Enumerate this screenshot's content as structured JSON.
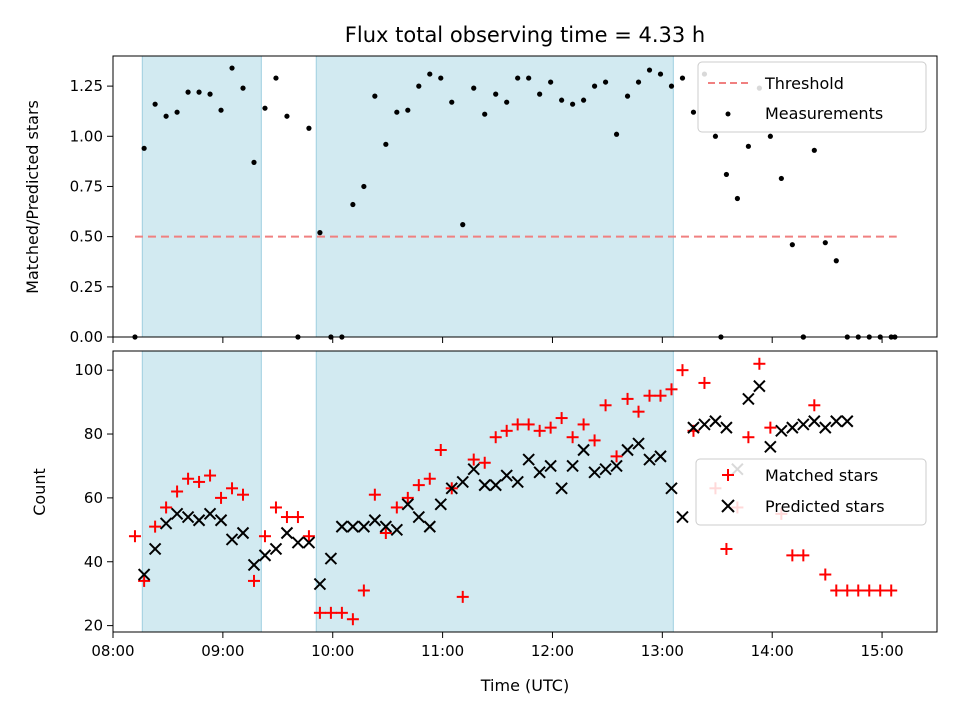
{
  "chart_data": [
    {
      "type": "scatter",
      "title": "Flux total observing time = 4.33 h",
      "xlabel": "",
      "ylabel": "Matched/Predicted stars",
      "xlim": [
        "08:00",
        "15:30"
      ],
      "ylim": [
        0,
        1.4
      ],
      "yticks": [
        "0.00",
        "0.25",
        "0.50",
        "0.75",
        "1.00",
        "1.25"
      ],
      "ytick_values": [
        0,
        0.25,
        0.5,
        0.75,
        1.0,
        1.25
      ],
      "xtick_values": [
        "08:00",
        "09:00",
        "10:00",
        "11:00",
        "12:00",
        "13:00",
        "14:00",
        "15:00"
      ],
      "shaded_intervals": [
        [
          "08:16",
          "09:21"
        ],
        [
          "09:51",
          "13:06"
        ]
      ],
      "shade_color": "#add8e6",
      "legend_position": "upper right",
      "series": [
        {
          "name": "Threshold",
          "kind": "dashed-line",
          "color": "#f08080",
          "x": [
            "08:12",
            "15:08"
          ],
          "y": [
            0.5,
            0.5
          ]
        },
        {
          "name": "Measurements",
          "kind": "dot",
          "color": "#000000",
          "x": [
            "08:12",
            "08:17",
            "08:23",
            "08:29",
            "08:35",
            "08:41",
            "08:47",
            "08:53",
            "08:59",
            "09:05",
            "09:11",
            "09:17",
            "09:23",
            "09:29",
            "09:35",
            "09:41",
            "09:47",
            "09:53",
            "09:59",
            "10:05",
            "10:11",
            "10:17",
            "10:23",
            "10:29",
            "10:35",
            "10:41",
            "10:47",
            "10:53",
            "10:59",
            "11:05",
            "11:11",
            "11:17",
            "11:23",
            "11:29",
            "11:35",
            "11:41",
            "11:47",
            "11:53",
            "11:59",
            "12:05",
            "12:11",
            "12:17",
            "12:23",
            "12:29",
            "12:35",
            "12:41",
            "12:47",
            "12:53",
            "12:59",
            "13:05",
            "13:11",
            "13:17",
            "13:23",
            "13:29",
            "13:35",
            "13:41",
            "13:47",
            "13:53",
            "13:59",
            "14:05",
            "14:11",
            "14:17",
            "14:23",
            "14:29",
            "14:35",
            "14:41",
            "14:47",
            "14:53",
            "14:59",
            "15:05",
            "15:07",
            "13:32",
            "14:17"
          ],
          "y": [
            0.0,
            0.94,
            1.16,
            1.1,
            1.12,
            1.22,
            1.22,
            1.21,
            1.13,
            1.34,
            1.24,
            0.87,
            1.14,
            1.29,
            1.1,
            0.0,
            1.04,
            0.52,
            0.0,
            0.0,
            0.66,
            0.75,
            1.2,
            0.96,
            1.12,
            1.13,
            1.25,
            1.31,
            1.29,
            1.17,
            0.56,
            1.24,
            1.11,
            1.21,
            1.17,
            1.29,
            1.29,
            1.21,
            1.27,
            1.18,
            1.16,
            1.18,
            1.25,
            1.27,
            1.01,
            1.2,
            1.27,
            1.33,
            1.31,
            1.25,
            1.29,
            1.12,
            1.31,
            1.0,
            0.81,
            0.69,
            0.95,
            1.24,
            1.0,
            0.79,
            0.46,
            0.0,
            0.93,
            0.47,
            0.38,
            0.0,
            0.0,
            0.0,
            0.0,
            0.0,
            0.0,
            0.0,
            0.0
          ]
        }
      ]
    },
    {
      "type": "scatter",
      "title": "",
      "xlabel": "Time (UTC)",
      "ylabel": "Count",
      "xlim": [
        "08:00",
        "15:30"
      ],
      "ylim": [
        18,
        106
      ],
      "yticks": [
        "20",
        "40",
        "60",
        "80",
        "100"
      ],
      "ytick_values": [
        20,
        40,
        60,
        80,
        100
      ],
      "xticks": [
        "08:00",
        "09:00",
        "10:00",
        "11:00",
        "12:00",
        "13:00",
        "14:00",
        "15:00"
      ],
      "xtick_values": [
        "08:00",
        "09:00",
        "10:00",
        "11:00",
        "12:00",
        "13:00",
        "14:00",
        "15:00"
      ],
      "shaded_intervals": [
        [
          "08:16",
          "09:21"
        ],
        [
          "09:51",
          "13:06"
        ]
      ],
      "shade_color": "#add8e6",
      "legend_position": "center right",
      "series": [
        {
          "name": "Matched stars",
          "kind": "plus",
          "color": "#ff0000",
          "x": [
            "08:12",
            "08:17",
            "08:23",
            "08:29",
            "08:35",
            "08:41",
            "08:47",
            "08:53",
            "08:59",
            "09:05",
            "09:11",
            "09:17",
            "09:23",
            "09:29",
            "09:35",
            "09:41",
            "09:47",
            "09:53",
            "09:59",
            "10:05",
            "10:11",
            "10:17",
            "10:23",
            "10:29",
            "10:35",
            "10:41",
            "10:47",
            "10:53",
            "10:59",
            "11:05",
            "11:11",
            "11:17",
            "11:23",
            "11:29",
            "11:35",
            "11:41",
            "11:47",
            "11:53",
            "11:59",
            "12:05",
            "12:11",
            "12:17",
            "12:23",
            "12:29",
            "12:35",
            "12:41",
            "12:47",
            "12:53",
            "12:59",
            "13:05",
            "13:11",
            "13:17",
            "13:23",
            "13:29",
            "13:35",
            "13:41",
            "13:47",
            "13:53",
            "13:59",
            "14:05",
            "14:11",
            "14:17",
            "14:23",
            "14:29",
            "14:35",
            "14:41",
            "14:47",
            "14:53",
            "14:59",
            "15:05"
          ],
          "y": [
            48,
            34,
            51,
            57,
            62,
            66,
            65,
            67,
            60,
            63,
            61,
            34,
            48,
            57,
            54,
            54,
            48,
            24,
            24,
            24,
            22,
            31,
            61,
            49,
            57,
            60,
            64,
            66,
            75,
            63,
            29,
            72,
            71,
            79,
            81,
            83,
            83,
            81,
            82,
            85,
            79,
            83,
            78,
            89,
            73,
            91,
            87,
            92,
            92,
            94,
            100,
            81,
            96,
            63,
            44,
            57,
            79,
            102,
            82,
            55,
            42,
            42,
            89,
            36,
            31,
            31,
            31,
            31,
            31,
            31
          ]
        },
        {
          "name": "Predicted stars",
          "kind": "x",
          "color": "#000000",
          "x": [
            "08:17",
            "08:23",
            "08:29",
            "08:35",
            "08:41",
            "08:47",
            "08:53",
            "08:59",
            "09:05",
            "09:11",
            "09:17",
            "09:23",
            "09:29",
            "09:35",
            "09:41",
            "09:47",
            "09:53",
            "09:59",
            "10:05",
            "10:11",
            "10:17",
            "10:23",
            "10:29",
            "10:35",
            "10:41",
            "10:47",
            "10:53",
            "10:59",
            "11:05",
            "11:11",
            "11:17",
            "11:23",
            "11:29",
            "11:35",
            "11:41",
            "11:47",
            "11:53",
            "11:59",
            "12:05",
            "12:11",
            "12:17",
            "12:23",
            "12:29",
            "12:35",
            "12:41",
            "12:47",
            "12:53",
            "12:59",
            "13:05",
            "13:11",
            "13:17",
            "13:23",
            "13:29",
            "13:35",
            "13:41",
            "13:47",
            "13:53",
            "13:59",
            "14:05",
            "14:11",
            "14:17",
            "14:23",
            "14:29",
            "14:35",
            "14:41"
          ],
          "y": [
            36,
            44,
            52,
            55,
            54,
            53,
            55,
            53,
            47,
            49,
            39,
            42,
            44,
            49,
            46,
            46,
            33,
            41,
            51,
            51,
            51,
            53,
            51,
            50,
            58,
            54,
            51,
            58,
            63,
            65,
            69,
            64,
            64,
            67,
            65,
            72,
            68,
            70,
            63,
            70,
            75,
            68,
            69,
            70,
            75,
            77,
            72,
            73,
            63,
            54,
            82,
            83,
            84,
            82,
            69,
            91,
            95,
            76,
            81,
            82,
            83,
            84,
            82,
            84,
            84
          ]
        }
      ]
    }
  ]
}
